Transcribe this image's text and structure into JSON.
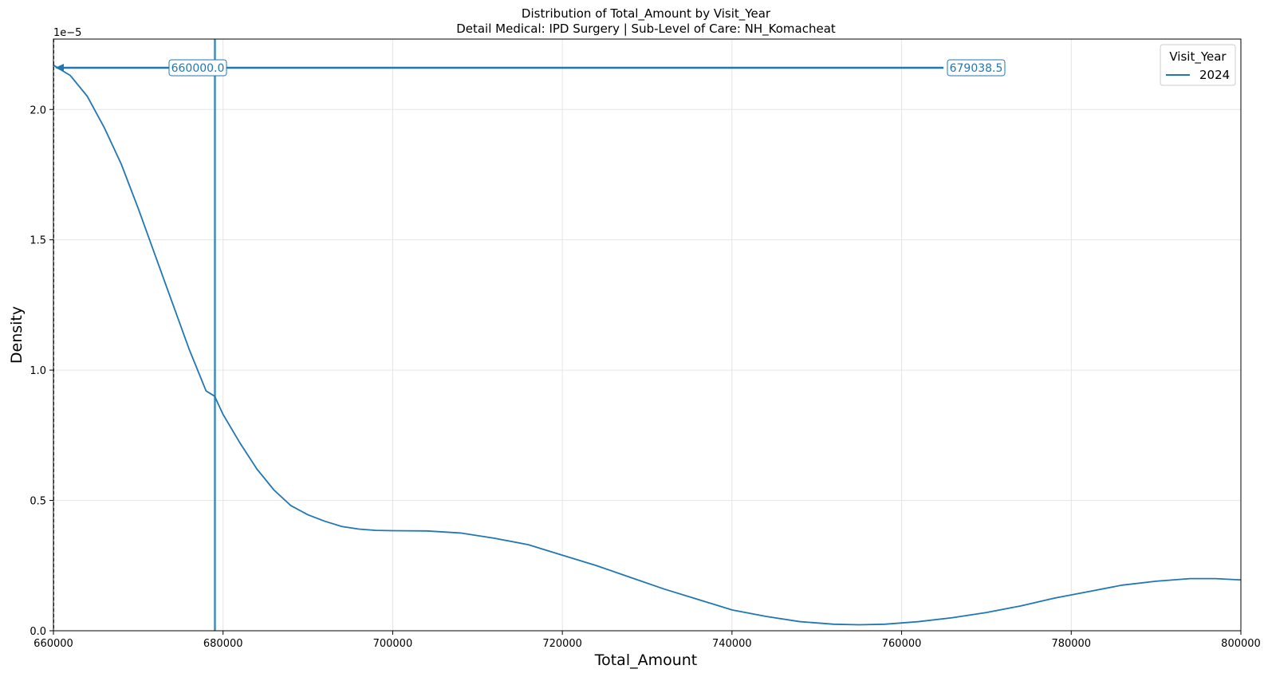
{
  "chart_data": {
    "type": "line",
    "title": "Distribution of Total_Amount by Visit_Year",
    "subtitle": "Detail Medical: IPD Surgery | Sub-Level of Care: NH_Komacheat",
    "xlabel": "Total_Amount",
    "ylabel": "Density",
    "y_offset_label": "1e−5",
    "xlim": [
      660000,
      800000
    ],
    "ylim": [
      0,
      2.27
    ],
    "x_ticks": [
      660000,
      680000,
      700000,
      720000,
      740000,
      760000,
      780000,
      800000
    ],
    "x_tick_labels": [
      "660000",
      "680000",
      "700000",
      "720000",
      "740000",
      "760000",
      "780000",
      "800000"
    ],
    "y_ticks": [
      0,
      0.5,
      1.0,
      1.5,
      2.0
    ],
    "y_tick_labels": [
      "0.0",
      "0.5",
      "1.0",
      "1.5",
      "2.0"
    ],
    "grid": true,
    "legend": {
      "title": "Visit_Year",
      "placement": "top-right",
      "entries": [
        "2024"
      ]
    },
    "series": [
      {
        "name": "2024",
        "color": "#1f77b4",
        "x": [
          660000,
          662000,
          664000,
          666000,
          668000,
          670000,
          672000,
          674000,
          676000,
          678000,
          679000,
          680000,
          682000,
          684000,
          686000,
          688000,
          690000,
          692000,
          694000,
          696000,
          698000,
          700000,
          704000,
          708000,
          712000,
          716000,
          720000,
          724000,
          728000,
          732000,
          736000,
          740000,
          744000,
          748000,
          752000,
          755000,
          758000,
          762000,
          766000,
          770000,
          774000,
          778000,
          782000,
          786000,
          790000,
          794000,
          797000,
          800000
        ],
        "y": [
          2.17,
          2.13,
          2.05,
          1.93,
          1.79,
          1.62,
          1.44,
          1.26,
          1.08,
          0.92,
          0.9,
          0.83,
          0.72,
          0.62,
          0.54,
          0.48,
          0.445,
          0.42,
          0.4,
          0.39,
          0.385,
          0.384,
          0.383,
          0.375,
          0.355,
          0.33,
          0.29,
          0.25,
          0.205,
          0.16,
          0.12,
          0.08,
          0.055,
          0.035,
          0.025,
          0.023,
          0.025,
          0.035,
          0.05,
          0.07,
          0.095,
          0.125,
          0.15,
          0.175,
          0.19,
          0.2,
          0.2,
          0.195
        ]
      }
    ],
    "annotations": [
      {
        "text": "660000.0",
        "x": 660000,
        "y": 2.16,
        "color": "#1f77b4",
        "marker": "left-arrow"
      },
      {
        "text": "679038.5",
        "x": 679038.5,
        "y": 2.16,
        "color": "#1f77b4",
        "marker": "vertical-line"
      }
    ]
  }
}
